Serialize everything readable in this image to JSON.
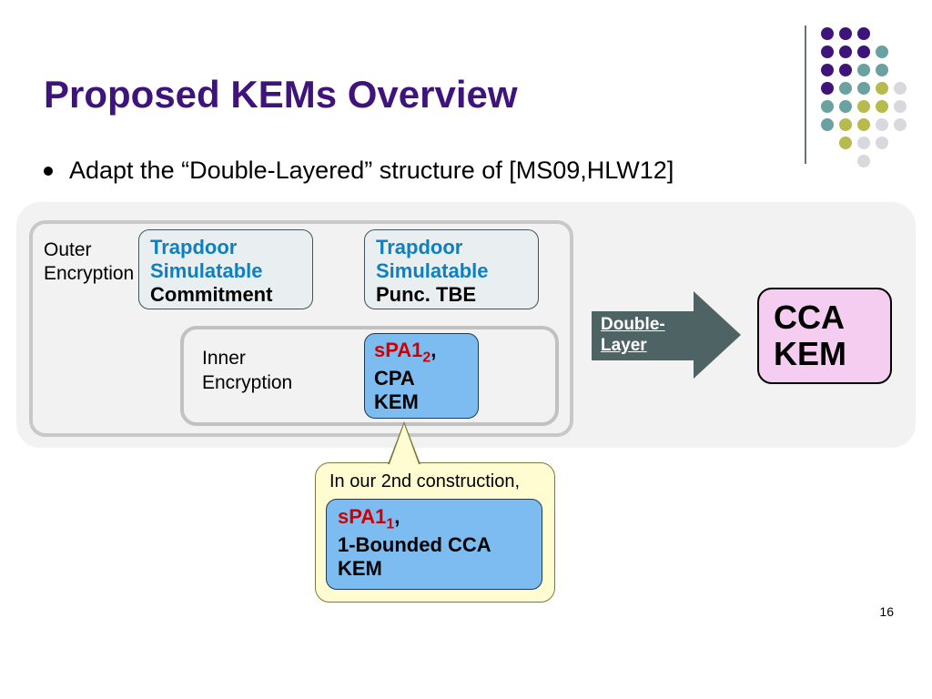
{
  "title": "Proposed KEMs Overview",
  "bullet": "Adapt the “Double-Layered” structure of [MS09,HLW12]",
  "outer_label_l1": "Outer",
  "outer_label_l2": "Encryption",
  "commit_l1": "Trapdoor",
  "commit_l2": "Simulatable",
  "commit_l3": "Commitment",
  "tbe_l1": "Trapdoor",
  "tbe_l2": "Simulatable",
  "tbe_l3": "Punc. TBE",
  "inner_label_l1": "Inner",
  "inner_label_l2": "Encryption",
  "cpa_l1a": "sPA1",
  "cpa_l1b": "2",
  "cpa_l1c": ",",
  "cpa_l2": "CPA",
  "cpa_l3": "KEM",
  "arrow_l1": "Double-",
  "arrow_l2": "Layer",
  "cca_l1": "CCA",
  "cca_l2": "KEM",
  "callout_text": "In our 2nd construction,",
  "cca1_l1a": "sPA1",
  "cca1_l1b": "1",
  "cca1_l1c": ",",
  "cca1_l2": "1-Bounded CCA",
  "cca1_l3": "KEM",
  "page": "16",
  "colors": {
    "title": "#3f147a",
    "blue": "#0f7fbf",
    "red": "#d10000",
    "panel_bg": "#f2f2f2",
    "frame_border": "#c8c8c8",
    "box_teal_bg": "#e9eff0",
    "box_blue_bg": "#7dbcf0",
    "arrow": "#4e6363",
    "cca_bg": "#f4cdf1",
    "callout_bg": "#fffcd1"
  },
  "dotgrid": {
    "spacing": 20,
    "radius": 7,
    "purple": "#3f147a",
    "teal": "#6aa2a2",
    "olive": "#b7bb4e",
    "grey": "#d8d8de",
    "dots": [
      {
        "r": 0,
        "c": 0,
        "k": "purple"
      },
      {
        "r": 0,
        "c": 1,
        "k": "purple"
      },
      {
        "r": 0,
        "c": 2,
        "k": "purple"
      },
      {
        "r": 1,
        "c": 0,
        "k": "purple"
      },
      {
        "r": 1,
        "c": 1,
        "k": "purple"
      },
      {
        "r": 1,
        "c": 2,
        "k": "purple"
      },
      {
        "r": 1,
        "c": 3,
        "k": "teal"
      },
      {
        "r": 2,
        "c": 0,
        "k": "purple"
      },
      {
        "r": 2,
        "c": 1,
        "k": "purple"
      },
      {
        "r": 2,
        "c": 2,
        "k": "teal"
      },
      {
        "r": 2,
        "c": 3,
        "k": "teal"
      },
      {
        "r": 3,
        "c": 0,
        "k": "purple"
      },
      {
        "r": 3,
        "c": 1,
        "k": "teal"
      },
      {
        "r": 3,
        "c": 2,
        "k": "teal"
      },
      {
        "r": 3,
        "c": 3,
        "k": "olive"
      },
      {
        "r": 3,
        "c": 4,
        "k": "grey"
      },
      {
        "r": 4,
        "c": 0,
        "k": "teal"
      },
      {
        "r": 4,
        "c": 1,
        "k": "teal"
      },
      {
        "r": 4,
        "c": 2,
        "k": "olive"
      },
      {
        "r": 4,
        "c": 3,
        "k": "olive"
      },
      {
        "r": 4,
        "c": 4,
        "k": "grey"
      },
      {
        "r": 5,
        "c": 0,
        "k": "teal"
      },
      {
        "r": 5,
        "c": 1,
        "k": "olive"
      },
      {
        "r": 5,
        "c": 2,
        "k": "olive"
      },
      {
        "r": 5,
        "c": 3,
        "k": "grey"
      },
      {
        "r": 5,
        "c": 4,
        "k": "grey"
      },
      {
        "r": 6,
        "c": 1,
        "k": "olive"
      },
      {
        "r": 6,
        "c": 2,
        "k": "grey"
      },
      {
        "r": 6,
        "c": 3,
        "k": "grey"
      },
      {
        "r": 7,
        "c": 2,
        "k": "grey"
      }
    ]
  }
}
